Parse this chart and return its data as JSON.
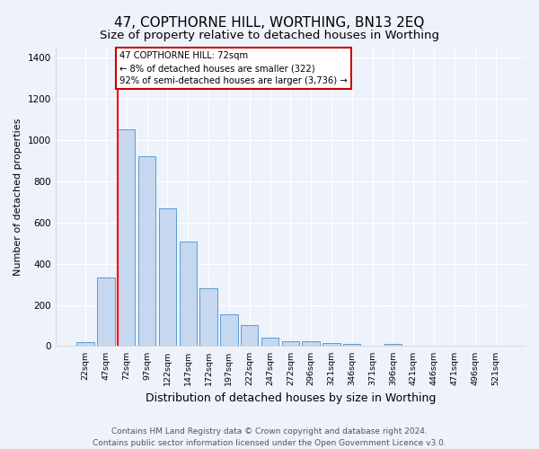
{
  "title": "47, COPTHORNE HILL, WORTHING, BN13 2EQ",
  "subtitle": "Size of property relative to detached houses in Worthing",
  "xlabel": "Distribution of detached houses by size in Worthing",
  "ylabel": "Number of detached properties",
  "categories": [
    "22sqm",
    "47sqm",
    "72sqm",
    "97sqm",
    "122sqm",
    "147sqm",
    "172sqm",
    "197sqm",
    "222sqm",
    "247sqm",
    "272sqm",
    "296sqm",
    "321sqm",
    "346sqm",
    "371sqm",
    "396sqm",
    "421sqm",
    "446sqm",
    "471sqm",
    "496sqm",
    "521sqm"
  ],
  "values": [
    20,
    335,
    1050,
    920,
    670,
    505,
    280,
    155,
    100,
    42,
    25,
    23,
    15,
    10,
    0,
    12,
    0,
    0,
    0,
    0,
    0
  ],
  "bar_color": "#c5d8f0",
  "bar_edge_color": "#5b9bd5",
  "red_line_x": 2,
  "annotation_text": "47 COPTHORNE HILL: 72sqm\n← 8% of detached houses are smaller (322)\n92% of semi-detached houses are larger (3,736) →",
  "annotation_box_color": "#ffffff",
  "annotation_box_edge_color": "#cc0000",
  "ylim": [
    0,
    1450
  ],
  "yticks": [
    0,
    200,
    400,
    600,
    800,
    1000,
    1200,
    1400
  ],
  "background_color": "#eef2fb",
  "grid_color": "#ffffff",
  "footer": "Contains HM Land Registry data © Crown copyright and database right 2024.\nContains public sector information licensed under the Open Government Licence v3.0.",
  "title_fontsize": 11,
  "subtitle_fontsize": 9.5,
  "xlabel_fontsize": 9,
  "ylabel_fontsize": 8,
  "footer_fontsize": 6.5
}
